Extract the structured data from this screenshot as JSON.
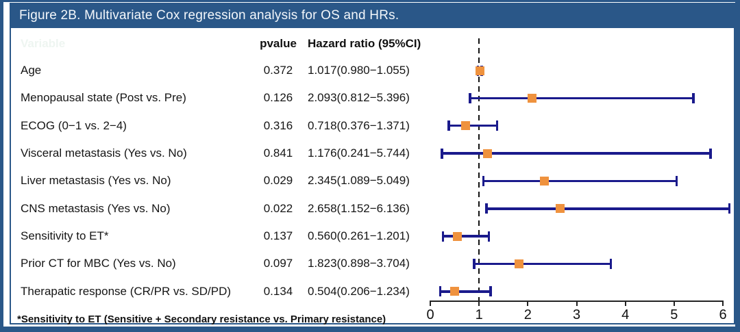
{
  "title": {
    "text": "Figure 2B. Multivariate Cox regression analysis for OS and HRs."
  },
  "table": {
    "header": {
      "variable_ghost": "Variable",
      "pvalue": "pvalue",
      "hazard": "Hazard ratio (95%CI)"
    }
  },
  "footnote": {
    "text": "*Sensitivity to ET (Sensitive + Secondary resistance vs. Primary resistance)"
  },
  "colors": {
    "frame_blue": "#2a5788",
    "bar_navy": "#1a1a8c",
    "marker_orange": "#ef923e",
    "axis_black": "#1a1a1a"
  },
  "chart_data": {
    "type": "forest",
    "title": "Figure 2B. Multivariate Cox regression analysis for OS and HRs.",
    "xlim": [
      0,
      6
    ],
    "x_ticks": [
      "0",
      "1",
      "2",
      "3",
      "4",
      "5",
      "6"
    ],
    "reference_line": 1,
    "grid": false,
    "rows": [
      {
        "label": "Age",
        "pvalue": "0.372",
        "hr_ci": "1.017(0.980−1.055)",
        "hr": 1.017,
        "lo": 0.98,
        "hi": 1.055
      },
      {
        "label": "Menopausal state (Post vs. Pre)",
        "pvalue": "0.126",
        "hr_ci": "2.093(0.812−5.396)",
        "hr": 2.093,
        "lo": 0.812,
        "hi": 5.396
      },
      {
        "label": "ECOG (0−1 vs. 2−4)",
        "pvalue": "0.316",
        "hr_ci": "0.718(0.376−1.371)",
        "hr": 0.718,
        "lo": 0.376,
        "hi": 1.371
      },
      {
        "label": "Visceral metastasis (Yes vs. No)",
        "pvalue": "0.841",
        "hr_ci": "1.176(0.241−5.744)",
        "hr": 1.176,
        "lo": 0.241,
        "hi": 5.744
      },
      {
        "label": "Liver metastasis (Yes vs. No)",
        "pvalue": "0.029",
        "hr_ci": "2.345(1.089−5.049)",
        "hr": 2.345,
        "lo": 1.089,
        "hi": 5.049
      },
      {
        "label": "CNS metastasis (Yes vs. No)",
        "pvalue": "0.022",
        "hr_ci": "2.658(1.152−6.136)",
        "hr": 2.658,
        "lo": 1.152,
        "hi": 6.136
      },
      {
        "label": "Sensitivity to ET*",
        "pvalue": "0.137",
        "hr_ci": "0.560(0.261−1.201)",
        "hr": 0.56,
        "lo": 0.261,
        "hi": 1.201
      },
      {
        "label": "Prior CT for MBC (Yes vs. No)",
        "pvalue": "0.097",
        "hr_ci": "1.823(0.898−3.704)",
        "hr": 1.823,
        "lo": 0.898,
        "hi": 3.704
      },
      {
        "label": "Therapatic response (CR/PR vs. SD/PD)",
        "pvalue": "0.134",
        "hr_ci": "0.504(0.206−1.234)",
        "hr": 0.504,
        "lo": 0.206,
        "hi": 1.234
      }
    ]
  }
}
